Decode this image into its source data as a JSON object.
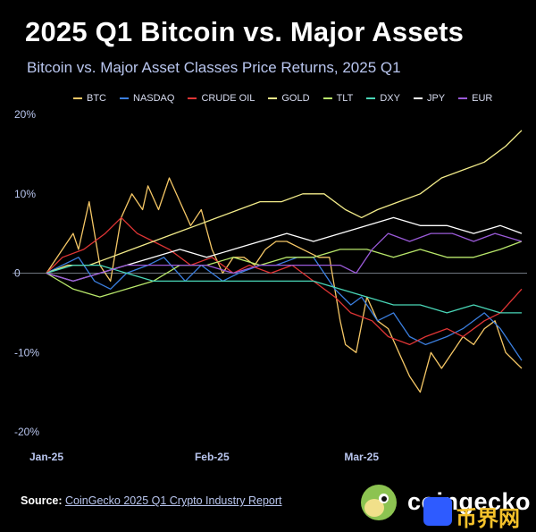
{
  "title": "2025 Q1 Bitcoin vs. Major Assets",
  "subtitle": "Bitcoin vs. Major Asset Classes Price Returns, 2025 Q1",
  "source": {
    "label": "Source:",
    "link_text": "CoinGecko 2025 Q1 Crypto Industry Report"
  },
  "logo": {
    "text": "coingecko",
    "icon": "coingecko-gecko-icon"
  },
  "watermark": {
    "text": "币界网",
    "icon": "watermark-badge-icon"
  },
  "chart_data": {
    "type": "line",
    "title": "",
    "xlabel": "",
    "ylabel": "",
    "ylim": [
      -20,
      20
    ],
    "yticks": [
      20,
      10,
      0,
      -10,
      -20
    ],
    "ytick_labels": [
      "20%",
      "10%",
      "0",
      "-10%",
      "-20%"
    ],
    "xlim": [
      "2025-01-01",
      "2025-03-31"
    ],
    "xticks": [
      "2025-01-01",
      "2025-02-01",
      "2025-03-01"
    ],
    "xtick_labels": [
      "Jan-25",
      "Feb-25",
      "Mar-25"
    ],
    "grid": false,
    "zero_line": true,
    "legend_placement": "top",
    "series": [
      {
        "name": "BTC",
        "color": "#f5c766",
        "points": [
          [
            "2025-01-01",
            0
          ],
          [
            "2025-01-04",
            3
          ],
          [
            "2025-01-06",
            5
          ],
          [
            "2025-01-07",
            3
          ],
          [
            "2025-01-09",
            9
          ],
          [
            "2025-01-11",
            1
          ],
          [
            "2025-01-13",
            -1
          ],
          [
            "2025-01-15",
            7
          ],
          [
            "2025-01-17",
            10
          ],
          [
            "2025-01-19",
            8
          ],
          [
            "2025-01-20",
            11
          ],
          [
            "2025-01-22",
            8
          ],
          [
            "2025-01-24",
            12
          ],
          [
            "2025-01-26",
            9
          ],
          [
            "2025-01-28",
            6
          ],
          [
            "2025-01-30",
            8
          ],
          [
            "2025-02-01",
            3
          ],
          [
            "2025-02-03",
            0
          ],
          [
            "2025-02-05",
            2
          ],
          [
            "2025-02-07",
            2
          ],
          [
            "2025-02-09",
            1
          ],
          [
            "2025-02-11",
            3
          ],
          [
            "2025-02-13",
            4
          ],
          [
            "2025-02-15",
            4
          ],
          [
            "2025-02-18",
            3
          ],
          [
            "2025-02-21",
            2
          ],
          [
            "2025-02-23",
            2
          ],
          [
            "2025-02-25",
            -6
          ],
          [
            "2025-02-26",
            -9
          ],
          [
            "2025-02-28",
            -10
          ],
          [
            "2025-03-02",
            -3
          ],
          [
            "2025-03-04",
            -6
          ],
          [
            "2025-03-06",
            -7
          ],
          [
            "2025-03-08",
            -10
          ],
          [
            "2025-03-10",
            -13
          ],
          [
            "2025-03-12",
            -15
          ],
          [
            "2025-03-14",
            -10
          ],
          [
            "2025-03-16",
            -12
          ],
          [
            "2025-03-18",
            -10
          ],
          [
            "2025-03-20",
            -8
          ],
          [
            "2025-03-22",
            -9
          ],
          [
            "2025-03-24",
            -7
          ],
          [
            "2025-03-26",
            -6
          ],
          [
            "2025-03-28",
            -10
          ],
          [
            "2025-03-31",
            -12
          ]
        ]
      },
      {
        "name": "NASDAQ",
        "color": "#3b7fe0",
        "points": [
          [
            "2025-01-01",
            0
          ],
          [
            "2025-01-04",
            1
          ],
          [
            "2025-01-07",
            2
          ],
          [
            "2025-01-10",
            -1
          ],
          [
            "2025-01-13",
            -2
          ],
          [
            "2025-01-16",
            0
          ],
          [
            "2025-01-20",
            1
          ],
          [
            "2025-01-23",
            2
          ],
          [
            "2025-01-27",
            -1
          ],
          [
            "2025-01-30",
            1
          ],
          [
            "2025-02-03",
            -1
          ],
          [
            "2025-02-06",
            0
          ],
          [
            "2025-02-10",
            1
          ],
          [
            "2025-02-13",
            1
          ],
          [
            "2025-02-17",
            2
          ],
          [
            "2025-02-20",
            2
          ],
          [
            "2025-02-24",
            -2
          ],
          [
            "2025-02-27",
            -4
          ],
          [
            "2025-03-01",
            -3
          ],
          [
            "2025-03-04",
            -6
          ],
          [
            "2025-03-07",
            -5
          ],
          [
            "2025-03-10",
            -8
          ],
          [
            "2025-03-13",
            -9
          ],
          [
            "2025-03-17",
            -8
          ],
          [
            "2025-03-20",
            -7
          ],
          [
            "2025-03-24",
            -5
          ],
          [
            "2025-03-27",
            -7
          ],
          [
            "2025-03-31",
            -11
          ]
        ]
      },
      {
        "name": "CRUDE OIL",
        "color": "#e03535",
        "points": [
          [
            "2025-01-01",
            0
          ],
          [
            "2025-01-04",
            2
          ],
          [
            "2025-01-08",
            3
          ],
          [
            "2025-01-12",
            5
          ],
          [
            "2025-01-15",
            7
          ],
          [
            "2025-01-18",
            5
          ],
          [
            "2025-01-21",
            4
          ],
          [
            "2025-01-24",
            3
          ],
          [
            "2025-01-28",
            1
          ],
          [
            "2025-02-01",
            2
          ],
          [
            "2025-02-05",
            0
          ],
          [
            "2025-02-08",
            1
          ],
          [
            "2025-02-12",
            0
          ],
          [
            "2025-02-16",
            1
          ],
          [
            "2025-02-20",
            -1
          ],
          [
            "2025-02-24",
            -3
          ],
          [
            "2025-02-27",
            -5
          ],
          [
            "2025-03-03",
            -6
          ],
          [
            "2025-03-06",
            -8
          ],
          [
            "2025-03-10",
            -9
          ],
          [
            "2025-03-13",
            -8
          ],
          [
            "2025-03-17",
            -7
          ],
          [
            "2025-03-20",
            -8
          ],
          [
            "2025-03-24",
            -6
          ],
          [
            "2025-03-27",
            -5
          ],
          [
            "2025-03-31",
            -2
          ]
        ]
      },
      {
        "name": "GOLD",
        "color": "#f3ec8a",
        "points": [
          [
            "2025-01-01",
            0
          ],
          [
            "2025-01-05",
            1
          ],
          [
            "2025-01-09",
            1
          ],
          [
            "2025-01-13",
            2
          ],
          [
            "2025-01-17",
            3
          ],
          [
            "2025-01-21",
            4
          ],
          [
            "2025-01-25",
            5
          ],
          [
            "2025-01-29",
            6
          ],
          [
            "2025-02-02",
            7
          ],
          [
            "2025-02-06",
            8
          ],
          [
            "2025-02-10",
            9
          ],
          [
            "2025-02-14",
            9
          ],
          [
            "2025-02-18",
            10
          ],
          [
            "2025-02-22",
            10
          ],
          [
            "2025-02-26",
            8
          ],
          [
            "2025-03-01",
            7
          ],
          [
            "2025-03-04",
            8
          ],
          [
            "2025-03-08",
            9
          ],
          [
            "2025-03-12",
            10
          ],
          [
            "2025-03-16",
            12
          ],
          [
            "2025-03-20",
            13
          ],
          [
            "2025-03-24",
            14
          ],
          [
            "2025-03-28",
            16
          ],
          [
            "2025-03-31",
            18
          ]
        ]
      },
      {
        "name": "TLT",
        "color": "#b9e86b",
        "points": [
          [
            "2025-01-01",
            0
          ],
          [
            "2025-01-06",
            -2
          ],
          [
            "2025-01-11",
            -3
          ],
          [
            "2025-01-16",
            -2
          ],
          [
            "2025-01-21",
            -1
          ],
          [
            "2025-01-26",
            1
          ],
          [
            "2025-01-31",
            1
          ],
          [
            "2025-02-05",
            2
          ],
          [
            "2025-02-10",
            1
          ],
          [
            "2025-02-15",
            2
          ],
          [
            "2025-02-20",
            2
          ],
          [
            "2025-02-25",
            3
          ],
          [
            "2025-03-02",
            3
          ],
          [
            "2025-03-07",
            2
          ],
          [
            "2025-03-12",
            3
          ],
          [
            "2025-03-17",
            2
          ],
          [
            "2025-03-22",
            2
          ],
          [
            "2025-03-27",
            3
          ],
          [
            "2025-03-31",
            4
          ]
        ]
      },
      {
        "name": "DXY",
        "color": "#49d6b7",
        "points": [
          [
            "2025-01-01",
            0
          ],
          [
            "2025-01-06",
            1
          ],
          [
            "2025-01-11",
            1
          ],
          [
            "2025-01-16",
            0
          ],
          [
            "2025-01-21",
            -1
          ],
          [
            "2025-01-26",
            -1
          ],
          [
            "2025-01-31",
            -1
          ],
          [
            "2025-02-05",
            -1
          ],
          [
            "2025-02-10",
            -1
          ],
          [
            "2025-02-15",
            -1
          ],
          [
            "2025-02-20",
            -1
          ],
          [
            "2025-02-25",
            -2
          ],
          [
            "2025-03-02",
            -3
          ],
          [
            "2025-03-07",
            -4
          ],
          [
            "2025-03-12",
            -4
          ],
          [
            "2025-03-17",
            -5
          ],
          [
            "2025-03-22",
            -4
          ],
          [
            "2025-03-27",
            -5
          ],
          [
            "2025-03-31",
            -5
          ]
        ]
      },
      {
        "name": "JPY",
        "color": "#ffffff",
        "points": [
          [
            "2025-01-01",
            0
          ],
          [
            "2025-01-06",
            -1
          ],
          [
            "2025-01-11",
            0
          ],
          [
            "2025-01-16",
            1
          ],
          [
            "2025-01-21",
            2
          ],
          [
            "2025-01-26",
            3
          ],
          [
            "2025-01-31",
            2
          ],
          [
            "2025-02-05",
            3
          ],
          [
            "2025-02-10",
            4
          ],
          [
            "2025-02-15",
            5
          ],
          [
            "2025-02-20",
            4
          ],
          [
            "2025-02-25",
            5
          ],
          [
            "2025-03-02",
            6
          ],
          [
            "2025-03-07",
            7
          ],
          [
            "2025-03-12",
            6
          ],
          [
            "2025-03-17",
            6
          ],
          [
            "2025-03-22",
            5
          ],
          [
            "2025-03-27",
            6
          ],
          [
            "2025-03-31",
            5
          ]
        ]
      },
      {
        "name": "EUR",
        "color": "#9a5ad8",
        "points": [
          [
            "2025-01-01",
            0
          ],
          [
            "2025-01-06",
            -1
          ],
          [
            "2025-01-11",
            0
          ],
          [
            "2025-01-16",
            1
          ],
          [
            "2025-01-21",
            1
          ],
          [
            "2025-01-26",
            1
          ],
          [
            "2025-01-31",
            1
          ],
          [
            "2025-02-05",
            0
          ],
          [
            "2025-02-10",
            1
          ],
          [
            "2025-02-15",
            1
          ],
          [
            "2025-02-20",
            1
          ],
          [
            "2025-02-25",
            1
          ],
          [
            "2025-02-28",
            0
          ],
          [
            "2025-03-03",
            3
          ],
          [
            "2025-03-06",
            5
          ],
          [
            "2025-03-10",
            4
          ],
          [
            "2025-03-14",
            5
          ],
          [
            "2025-03-18",
            5
          ],
          [
            "2025-03-22",
            4
          ],
          [
            "2025-03-26",
            5
          ],
          [
            "2025-03-31",
            4
          ]
        ]
      }
    ]
  }
}
